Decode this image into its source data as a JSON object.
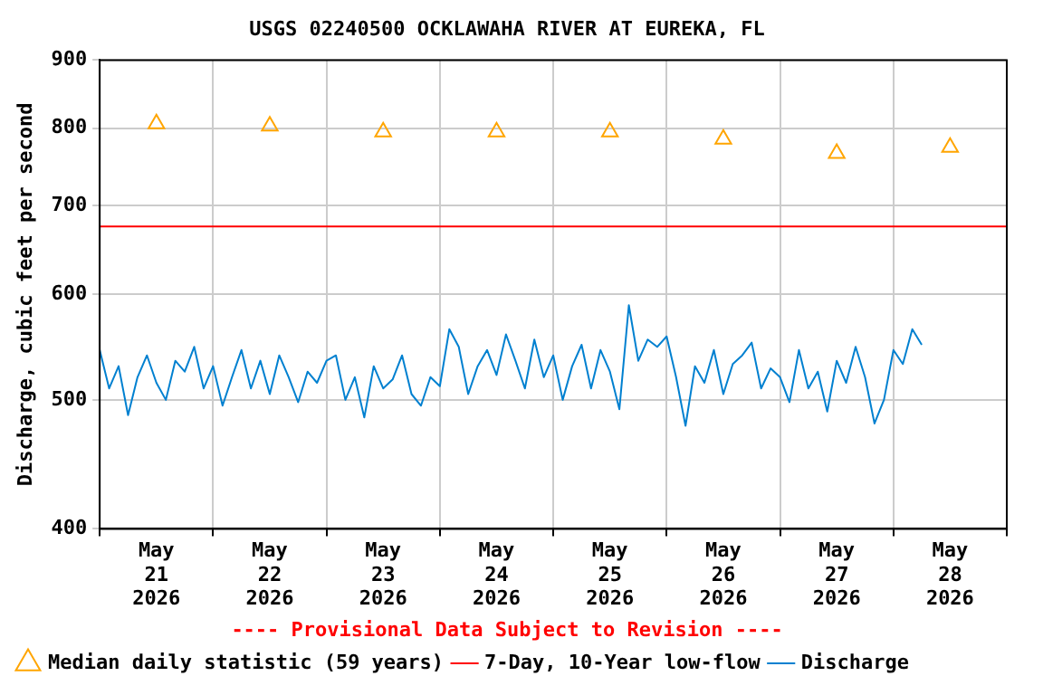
{
  "chart_data": {
    "type": "line",
    "title": "USGS 02240500 OCKLAWAHA RIVER AT EUREKA, FL",
    "ylabel": "Discharge, cubic feet per second",
    "annotations": [
      "---- Provisional Data Subject to Revision ----"
    ],
    "log": "y",
    "grid": true,
    "legend": "bottom",
    "marker": "none",
    "xlim": [
      "2026-05-21",
      "2026-05-29"
    ],
    "xticks": [
      {
        "value": "2026-05-21",
        "label": null
      },
      {
        "value": "2026-05-21T12:00",
        "label": "May 21 2026"
      },
      {
        "value": "2026-05-22",
        "label": null
      },
      {
        "value": "2026-05-22T12:00",
        "label": "May 22 2026"
      },
      {
        "value": "2026-05-23",
        "label": null
      },
      {
        "value": "2026-05-23T12:00",
        "label": "May 23 2026"
      },
      {
        "value": "2026-05-24",
        "label": null
      },
      {
        "value": "2026-05-24T12:00",
        "label": "May 24 2026"
      },
      {
        "value": "2026-05-25",
        "label": null
      },
      {
        "value": "2026-05-25T12:00",
        "label": "May 25 2026"
      },
      {
        "value": "2026-05-26",
        "label": null
      },
      {
        "value": "2026-05-26T12:00",
        "label": "May 26 2026"
      },
      {
        "value": "2026-05-27",
        "label": null
      },
      {
        "value": "2026-05-27T12:00",
        "label": "May 27 2026"
      },
      {
        "value": "2026-05-28",
        "label": null
      },
      {
        "value": "2026-05-28T12:00",
        "label": "May 28 2026"
      },
      {
        "value": "2026-05-29",
        "label": null
      }
    ],
    "ylim": [
      400,
      900
    ],
    "yticks": [
      400,
      500,
      600,
      700,
      800,
      900
    ],
    "series": [
      {
        "name": "Median daily statistic (59 years)",
        "type": "scatter",
        "marker": "triangle",
        "color": "#ffa500",
        "x": [
          "2026-05-21T12:00",
          "2026-05-22T12:00",
          "2026-05-23T12:00",
          "2026-05-24T12:00",
          "2026-05-25T12:00",
          "2026-05-26T12:00",
          "2026-05-27T12:00",
          "2026-05-28T12:00"
        ],
        "values": [
          806,
          803,
          795,
          795,
          795,
          785,
          766,
          774
        ]
      },
      {
        "name": "7-Day, 10-Year low-flow",
        "color": "#ff0000",
        "x": [
          "2026-05-21",
          "2026-05-29"
        ],
        "values": [
          675,
          675
        ]
      },
      {
        "name": "Discharge",
        "color": "#0080d0",
        "x": [
          "2026-05-21T00:00",
          "2026-05-21T02:00",
          "2026-05-21T04:00",
          "2026-05-21T06:00",
          "2026-05-21T08:00",
          "2026-05-21T10:00",
          "2026-05-21T12:00",
          "2026-05-21T14:00",
          "2026-05-21T16:00",
          "2026-05-21T18:00",
          "2026-05-21T20:00",
          "2026-05-21T22:00",
          "2026-05-22T00:00",
          "2026-05-22T02:00",
          "2026-05-22T04:00",
          "2026-05-22T06:00",
          "2026-05-22T08:00",
          "2026-05-22T10:00",
          "2026-05-22T12:00",
          "2026-05-22T14:00",
          "2026-05-22T16:00",
          "2026-05-22T18:00",
          "2026-05-22T20:00",
          "2026-05-22T22:00",
          "2026-05-23T00:00",
          "2026-05-23T02:00",
          "2026-05-23T04:00",
          "2026-05-23T06:00",
          "2026-05-23T08:00",
          "2026-05-23T10:00",
          "2026-05-23T12:00",
          "2026-05-23T14:00",
          "2026-05-23T16:00",
          "2026-05-23T18:00",
          "2026-05-23T20:00",
          "2026-05-23T22:00",
          "2026-05-24T00:00",
          "2026-05-24T02:00",
          "2026-05-24T04:00",
          "2026-05-24T06:00",
          "2026-05-24T08:00",
          "2026-05-24T10:00",
          "2026-05-24T12:00",
          "2026-05-24T14:00",
          "2026-05-24T16:00",
          "2026-05-24T18:00",
          "2026-05-24T20:00",
          "2026-05-24T22:00",
          "2026-05-25T00:00",
          "2026-05-25T02:00",
          "2026-05-25T04:00",
          "2026-05-25T06:00",
          "2026-05-25T08:00",
          "2026-05-25T10:00",
          "2026-05-25T12:00",
          "2026-05-25T14:00",
          "2026-05-25T16:00",
          "2026-05-25T18:00",
          "2026-05-25T20:00",
          "2026-05-25T22:00",
          "2026-05-26T00:00",
          "2026-05-26T02:00",
          "2026-05-26T04:00",
          "2026-05-26T06:00",
          "2026-05-26T08:00",
          "2026-05-26T10:00",
          "2026-05-26T12:00",
          "2026-05-26T14:00",
          "2026-05-26T16:00",
          "2026-05-26T18:00",
          "2026-05-26T20:00",
          "2026-05-26T22:00",
          "2026-05-27T00:00",
          "2026-05-27T02:00",
          "2026-05-27T04:00",
          "2026-05-27T06:00",
          "2026-05-27T08:00",
          "2026-05-27T10:00",
          "2026-05-27T12:00",
          "2026-05-27T14:00",
          "2026-05-27T16:00",
          "2026-05-27T18:00",
          "2026-05-27T20:00",
          "2026-05-27T22:00",
          "2026-05-28T00:00",
          "2026-05-28T02:00",
          "2026-05-28T04:00",
          "2026-05-28T06:00"
        ],
        "values": [
          545,
          510,
          530,
          487,
          520,
          540,
          515,
          500,
          535,
          525,
          548,
          510,
          530,
          495,
          520,
          545,
          510,
          535,
          505,
          540,
          520,
          498,
          525,
          515,
          535,
          540,
          500,
          520,
          485,
          530,
          510,
          518,
          540,
          505,
          495,
          520,
          512,
          565,
          548,
          505,
          530,
          545,
          522,
          560,
          535,
          510,
          555,
          520,
          540,
          500,
          530,
          550,
          510,
          545,
          525,
          492,
          589,
          535,
          555,
          548,
          558,
          520,
          478,
          530,
          515,
          545,
          505,
          532,
          540,
          552,
          510,
          528,
          520,
          498,
          545,
          510,
          525,
          490,
          535,
          515,
          548,
          520,
          480,
          500,
          545,
          532,
          565,
          550
        ]
      }
    ]
  }
}
